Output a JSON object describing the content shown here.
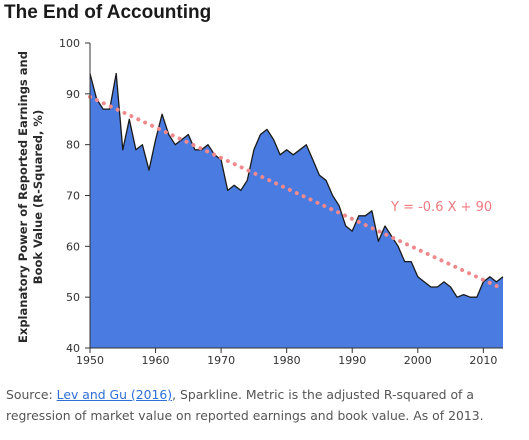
{
  "title": "The End of Accounting",
  "source": {
    "prefix": "Source: ",
    "link_text": "Lev and Gu (2016)",
    "rest": ", Sparkline. Metric is the adjusted R-squared of a regression of market value on reported earnings and book value. As of 2013."
  },
  "colors": {
    "area": "#4a7be0",
    "outline": "#1a1a1a",
    "trend": "#f08a8e"
  },
  "chart_data": {
    "type": "area",
    "title": "The End of Accounting",
    "ylabel_lines": [
      "Explanatory Power of Reported Earnings and",
      "Book Value (R-Squared, %)"
    ],
    "xlim": [
      1950,
      2013
    ],
    "ylim": [
      40,
      100
    ],
    "xticks": [
      1950,
      1960,
      1970,
      1980,
      1990,
      2000,
      2010
    ],
    "yticks": [
      40,
      50,
      60,
      70,
      80,
      90,
      100
    ],
    "grid": false,
    "legend": "none",
    "series": [
      {
        "x": [
          1950,
          1951,
          1952,
          1953,
          1954,
          1955,
          1956,
          1957,
          1958,
          1959,
          1960,
          1961,
          1962,
          1963,
          1964,
          1965,
          1966,
          1967,
          1968,
          1969,
          1970,
          1971,
          1972,
          1973,
          1974,
          1975,
          1976,
          1977,
          1978,
          1979,
          1980,
          1981,
          1982,
          1983,
          1984,
          1985,
          1986,
          1987,
          1988,
          1989,
          1990,
          1991,
          1992,
          1993,
          1994,
          1995,
          1996,
          1997,
          1998,
          1999,
          2000,
          2001,
          2002,
          2003,
          2004,
          2005,
          2006,
          2007,
          2008,
          2009,
          2010,
          2011,
          2012,
          2013
        ],
        "y": [
          94,
          89,
          87,
          87,
          94,
          79,
          85,
          79,
          80,
          75,
          81,
          86,
          82,
          80,
          81,
          82,
          79,
          79,
          80,
          78,
          77,
          71,
          72,
          71,
          73,
          79,
          82,
          83,
          81,
          78,
          79,
          78,
          79,
          80,
          77,
          74,
          73,
          70,
          68,
          64,
          63,
          66,
          66,
          67,
          61,
          64,
          62,
          60,
          57,
          57,
          54,
          53,
          52,
          52,
          53,
          52,
          50,
          50.5,
          50,
          50,
          53,
          54,
          53,
          54
        ]
      }
    ],
    "trendline": {
      "equation": "Y = -0.6 X + 90",
      "slope": -0.6,
      "intercept": 90
    }
  }
}
